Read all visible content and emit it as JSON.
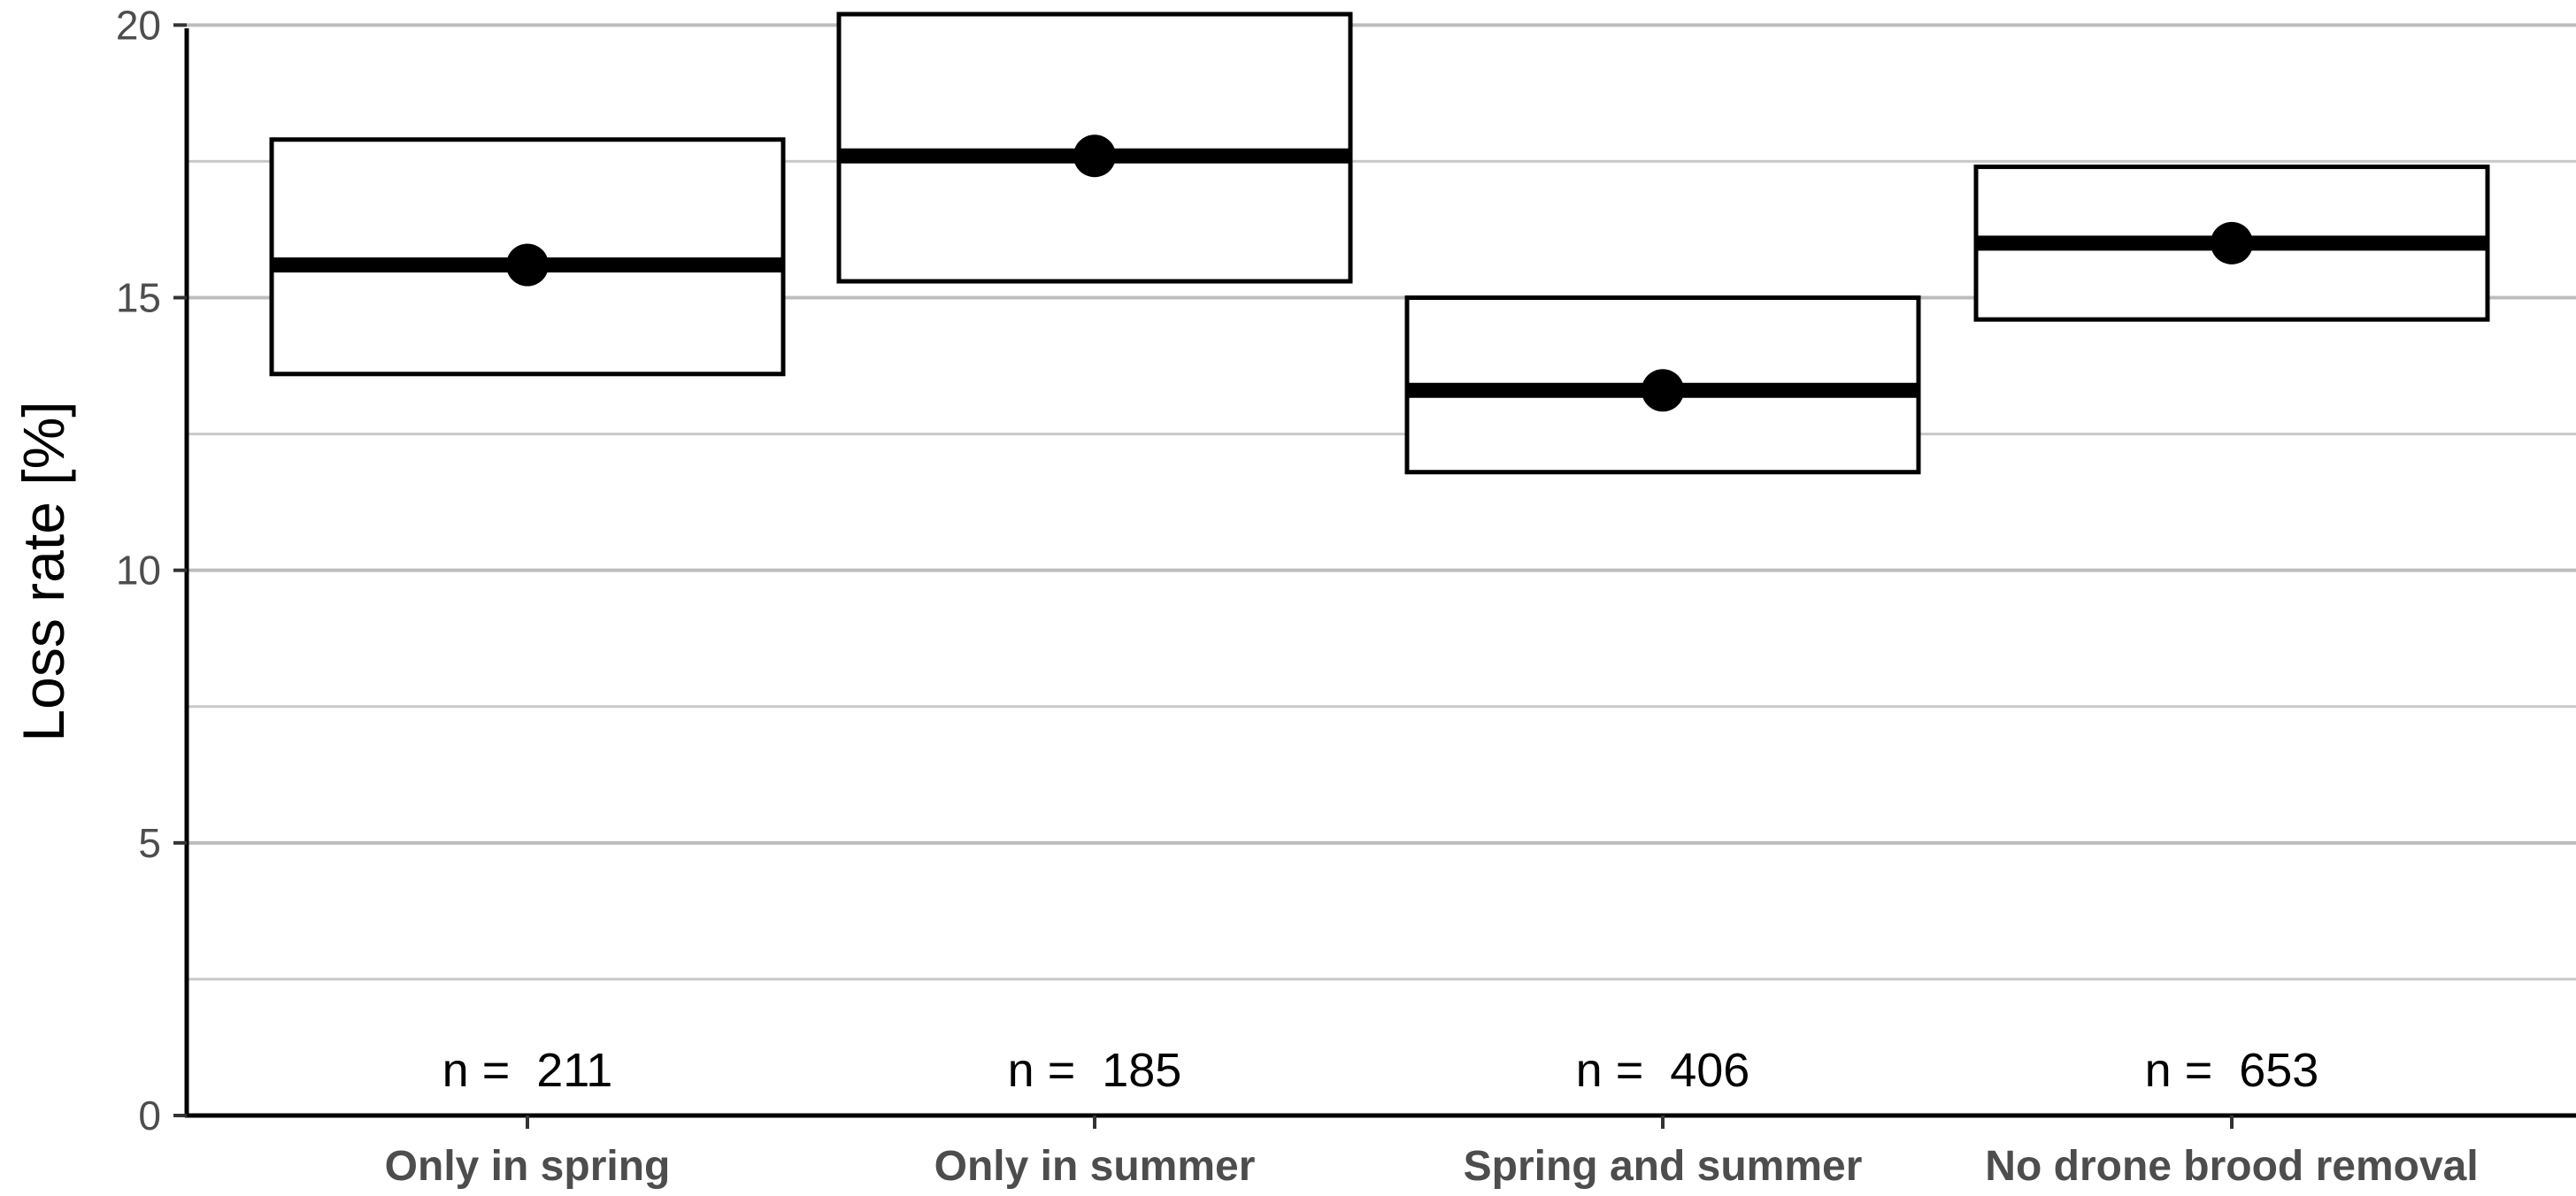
{
  "chart_data": {
    "type": "box",
    "ylabel": "Loss rate [%]",
    "xlabel": "",
    "ylim": [
      0,
      20.2
    ],
    "yticks": [
      0,
      5,
      10,
      15,
      20
    ],
    "grid_major": true,
    "grid_minor": true,
    "categories": [
      "Only in spring",
      "Only in summer",
      "Spring and summer",
      "No drone brood removal"
    ],
    "estimate": [
      15.6,
      17.6,
      13.3,
      16.0
    ],
    "lower": [
      13.6,
      15.3,
      11.8,
      14.6
    ],
    "upper": [
      17.9,
      20.2,
      15.0,
      17.4
    ],
    "n_labels": [
      "n =  211",
      "n =  185",
      "n =  406",
      "n =  653"
    ]
  }
}
